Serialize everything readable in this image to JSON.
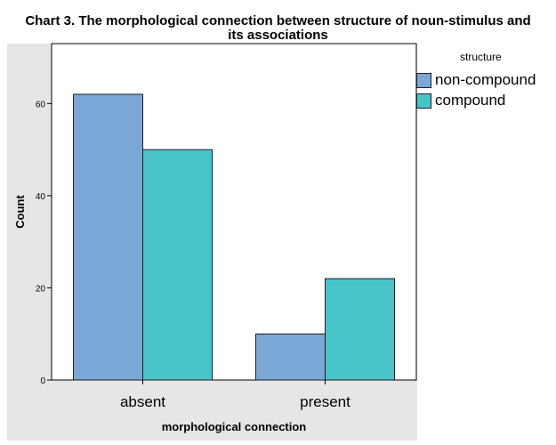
{
  "chart_data": {
    "type": "bar",
    "title_lines": [
      "Chart 3. The morphological connection between structure of noun-stimulus and",
      "its associations"
    ],
    "xlabel": "morphological connection",
    "ylabel": "Count",
    "categories": [
      "absent",
      "present"
    ],
    "series": [
      {
        "name": "non-compound",
        "values": [
          62,
          10
        ],
        "color": "#7ba7d7"
      },
      {
        "name": "compound",
        "values": [
          50,
          22
        ],
        "color": "#48c4c8"
      }
    ],
    "ylim": [
      0,
      73
    ],
    "yticks": [
      0,
      20,
      40,
      60
    ],
    "grid": false,
    "legend": {
      "title": "structure",
      "position": "right"
    },
    "colors": {
      "plot_background": "#ffffff",
      "frame_background": "#e6e6e6",
      "bar_outline": "#1e1e1e"
    }
  }
}
